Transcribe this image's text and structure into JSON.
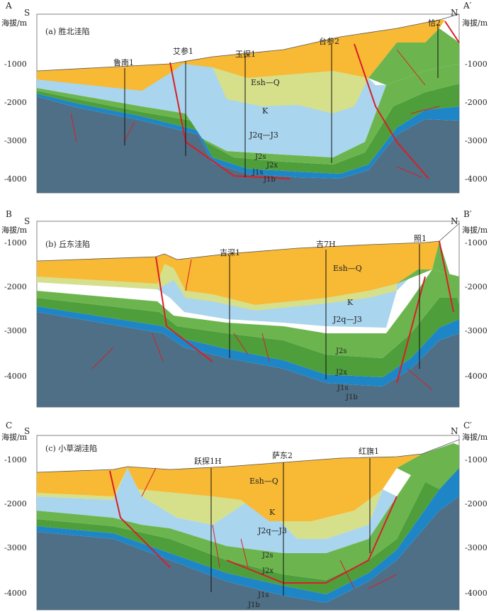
{
  "colors": {
    "esh": "#f8b934",
    "k": "#d6e08a",
    "jq": "#a9d5ee",
    "js": "#6cb54e",
    "jx": "#4e9e3c",
    "j1": "#1e86c7",
    "base": "#4f6f86",
    "fault": "#d81f26"
  },
  "panels": [
    {
      "left_label": "A",
      "right_label": "A′",
      "south": "S",
      "north": "N",
      "title": "(a) 胜北洼陷",
      "axis_title": "海拔/m",
      "ticks": [
        "-1000",
        "-2000",
        "-3000",
        "-4000"
      ],
      "wells": [
        "鲁南1",
        "艾参1",
        "玉探1",
        "台参2",
        "恰2"
      ],
      "units": {
        "esh": "Esh—Q",
        "k": "K",
        "jq": "J2q—J3",
        "js": "J2s",
        "jx": "J2x",
        "j1s": "J1s",
        "j1b": "J1b"
      }
    },
    {
      "left_label": "B",
      "right_label": "B′",
      "south": "S",
      "north": "N",
      "title": "(b) 丘东洼陷",
      "axis_title": "海拔/m",
      "ticks": [
        "-1000",
        "-2000",
        "-3000",
        "-4000"
      ],
      "wells": [
        "吉深1",
        "吉7H",
        "照1"
      ],
      "units": {
        "esh": "Esh—Q",
        "k": "K",
        "jq": "J2q—J3",
        "js": "J2s",
        "jx": "J2x",
        "j1s": "J1s",
        "j1b": "J1b"
      }
    },
    {
      "left_label": "C",
      "right_label": "C′",
      "south": "S",
      "north": "N",
      "title": "(c) 小草湖洼陷",
      "axis_title": "海拔/m",
      "ticks": [
        "-1000",
        "-2000",
        "-3000",
        "-4000"
      ],
      "wells": [
        "跃探1H",
        "萨东2",
        "红旗1"
      ],
      "units": {
        "esh": "Esh—Q",
        "k": "K",
        "jq": "J2q—J3",
        "js": "J2s",
        "jx": "J2x",
        "j1s": "J1s",
        "j1b": "J1b"
      }
    }
  ]
}
